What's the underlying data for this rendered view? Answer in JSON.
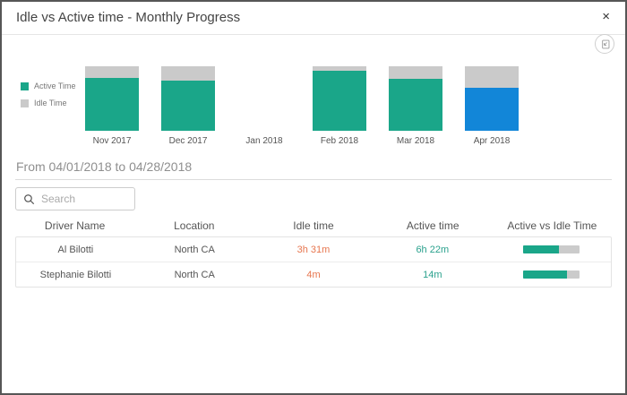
{
  "dialog": {
    "title": "Idle vs Active time - Monthly Progress",
    "close_glyph": "×"
  },
  "chart_data": {
    "type": "bar",
    "stacked": true,
    "categories": [
      "Nov 2017",
      "Dec 2017",
      "Jan 2018",
      "Feb 2018",
      "Mar 2018",
      "Apr 2018"
    ],
    "series": [
      {
        "name": "Active Time",
        "color": "#1aa689",
        "values": [
          82,
          78,
          0,
          93,
          80,
          67
        ]
      },
      {
        "name": "Idle Time",
        "color": "#cacaca",
        "values": [
          18,
          22,
          0,
          7,
          20,
          33
        ]
      }
    ],
    "units": "percent_of_bar_height",
    "ylim": [
      0,
      100
    ],
    "legend_position": "left",
    "grid": false,
    "highlighted_category": "Apr 2018",
    "highlight_active_color": "#1286d8"
  },
  "period": {
    "label": "From 04/01/2018 to 04/28/2018"
  },
  "search": {
    "placeholder": "Search"
  },
  "table": {
    "columns": [
      "Driver Name",
      "Location",
      "Idle time",
      "Active time",
      "Active vs Idle Time"
    ],
    "rows": [
      {
        "driver": "Al Bilotti",
        "location": "North CA",
        "idle_time": "3h 31m",
        "active_time": "6h 22m",
        "active_vs_idle_pct": 64
      },
      {
        "driver": "Stephanie Bilotti",
        "location": "North CA",
        "idle_time": "4m",
        "active_time": "14m",
        "active_vs_idle_pct": 78
      }
    ]
  },
  "colors": {
    "active": "#1aa689",
    "idle": "#cacaca",
    "highlight_blue": "#1286d8",
    "idle_text": "#e7764f",
    "active_text": "#2aa18d"
  }
}
